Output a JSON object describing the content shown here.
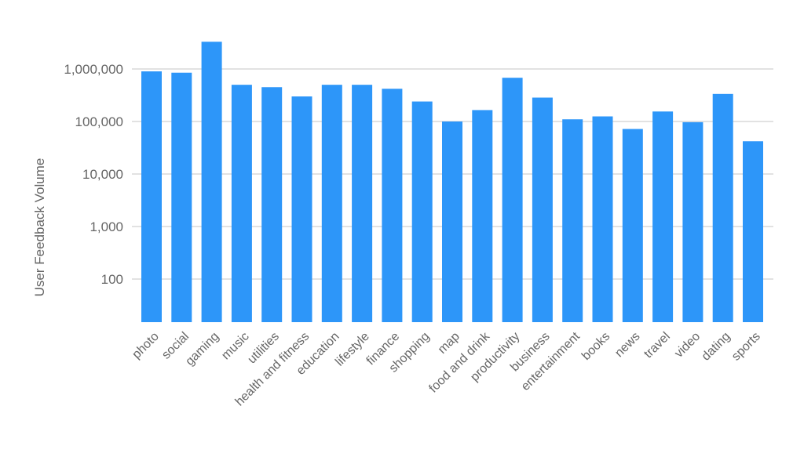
{
  "chart_data": {
    "type": "bar",
    "ylabel": "User Feedback Volume",
    "xlabel": "",
    "title": "",
    "yscale": "log",
    "ylim": [
      20,
      2000000
    ],
    "grid": true,
    "bar_color": "#2d96f9",
    "grid_color": "#d9d9d9",
    "yticks": [
      100,
      1000,
      10000,
      100000,
      1000000
    ],
    "ytick_labels": [
      "100",
      "1,000",
      "10,000",
      "100,000",
      "1,000,000"
    ],
    "categories": [
      "photo",
      "social",
      "gaming",
      "music",
      "utilities",
      "health and fitness",
      "education",
      "lifestyle",
      "finance",
      "shopping",
      "map",
      "food and drink",
      "productivity",
      "business",
      "entertainment",
      "books",
      "news",
      "travel",
      "video",
      "dating",
      "sports"
    ],
    "values": [
      900000,
      850000,
      3300000,
      500000,
      450000,
      300000,
      500000,
      500000,
      420000,
      240000,
      100000,
      165000,
      680000,
      285000,
      110000,
      125000,
      72000,
      155000,
      97000,
      335000,
      42000
    ]
  }
}
